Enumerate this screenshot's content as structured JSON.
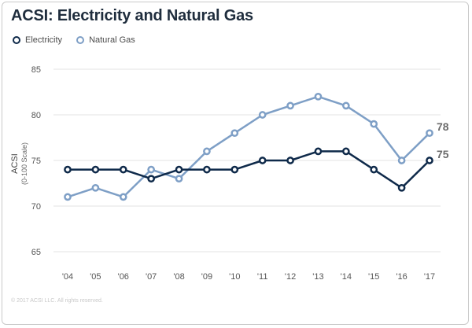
{
  "chart_data": {
    "type": "line",
    "title": "ACSI: Electricity and Natural Gas",
    "ylabel": "ACSI",
    "ylabel_sub": "(0-100 Scale)",
    "ylim": [
      65,
      85
    ],
    "yticks": [
      65,
      70,
      75,
      80,
      85
    ],
    "grid": true,
    "legend_position": "top-left",
    "categories": [
      "'04",
      "'05",
      "'06",
      "'07",
      "'08",
      "'09",
      "'10",
      "'11",
      "'12",
      "'13",
      "'14",
      "'15",
      "'16",
      "'17"
    ],
    "series": [
      {
        "name": "Electricity",
        "color": "#0f2a4a",
        "values": [
          74,
          74,
          74,
          73,
          74,
          74,
          74,
          75,
          75,
          76,
          76,
          74,
          72,
          75
        ],
        "end_label": "75"
      },
      {
        "name": "Natural Gas",
        "color": "#7e9fc6",
        "values": [
          71,
          72,
          71,
          74,
          73,
          76,
          78,
          80,
          81,
          82,
          81,
          79,
          75,
          78
        ],
        "end_label": "78"
      }
    ]
  },
  "copyright": "© 2017 ACSI LLC. All rights reserved."
}
